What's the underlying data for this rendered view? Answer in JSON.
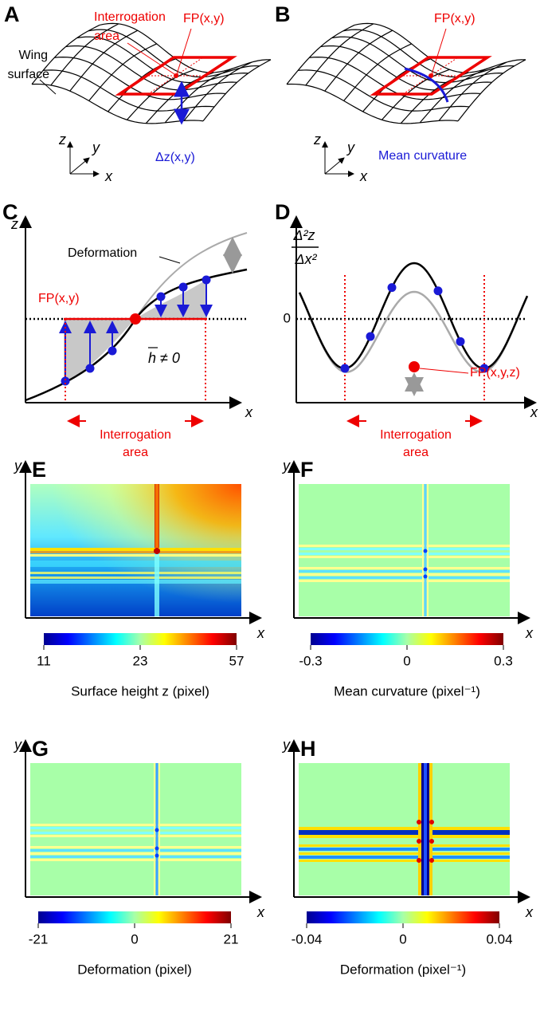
{
  "panel_a": {
    "letter": "A",
    "area_label_1": "Interrogation",
    "area_label_2": "area",
    "fp": "FP(x,y)",
    "wing_1": "Wing",
    "wing_2": "surface",
    "dz": "Δz(x,y)",
    "axis_z": "z",
    "axis_y": "y",
    "axis_x": "x"
  },
  "panel_b": {
    "letter": "B",
    "fp": "FP(x,y)",
    "curvature": "Mean curvature",
    "axis_z": "z",
    "axis_y": "y",
    "axis_x": "x"
  },
  "panel_c": {
    "letter": "C",
    "axis_z": "z",
    "deformation": "Deformation",
    "fp": "FP(x,y)",
    "hbar": "h ≠ 0",
    "axis_x": "x",
    "area_label_1": "Interrogation",
    "area_label_2": "area"
  },
  "panel_d": {
    "letter": "D",
    "numerator": "Δ²z",
    "denominator": "Δx²",
    "zero": "0",
    "fp": "FP(x,y,z)",
    "axis_x": "x",
    "area_label_1": "Interrogation",
    "area_label_2": "area"
  },
  "panel_e": {
    "letter": "E",
    "axis_y": "y",
    "axis_x": "x",
    "colorbar_ticks": [
      "11",
      "23",
      "57"
    ],
    "colorbar_label": "Surface height z (pixel)"
  },
  "panel_f": {
    "letter": "F",
    "axis_y": "y",
    "axis_x": "x",
    "colorbar_ticks": [
      "-0.3",
      "0",
      "0.3"
    ],
    "colorbar_label": "Mean curvature (pixel⁻¹)"
  },
  "panel_g": {
    "letter": "G",
    "axis_y": "y",
    "axis_x": "x",
    "colorbar_ticks": [
      "-21",
      "0",
      "21"
    ],
    "colorbar_label": "Deformation (pixel)"
  },
  "panel_h": {
    "letter": "H",
    "axis_y": "y",
    "axis_x": "x",
    "colorbar_ticks": [
      "-0.04",
      "0",
      "0.04"
    ],
    "colorbar_label": "Deformation (pixel⁻¹)"
  }
}
